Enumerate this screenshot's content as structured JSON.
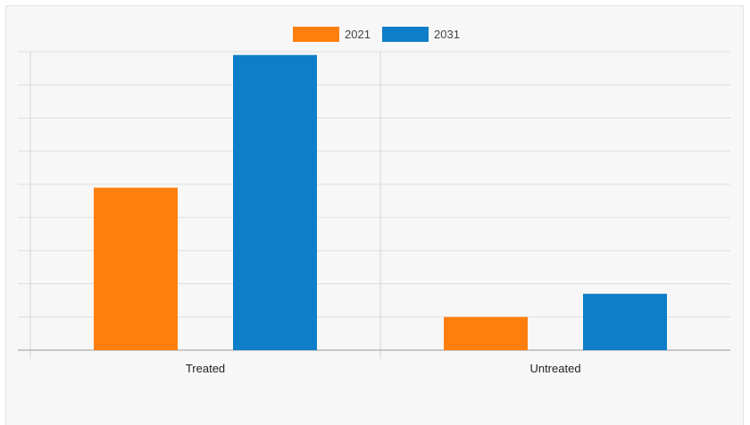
{
  "chart_data": {
    "type": "bar",
    "title": "",
    "xlabel": "",
    "ylabel": "",
    "categories": [
      "Treated",
      "Untreated"
    ],
    "series": [
      {
        "name": "2021",
        "color": "#ff7f0e",
        "values": [
          4.9,
          1.0
        ]
      },
      {
        "name": "2031",
        "color": "#0f7ec8",
        "values": [
          8.9,
          1.7
        ]
      }
    ],
    "ylim": [
      0,
      9.0
    ],
    "grid": true,
    "legend_position": "top-center"
  }
}
